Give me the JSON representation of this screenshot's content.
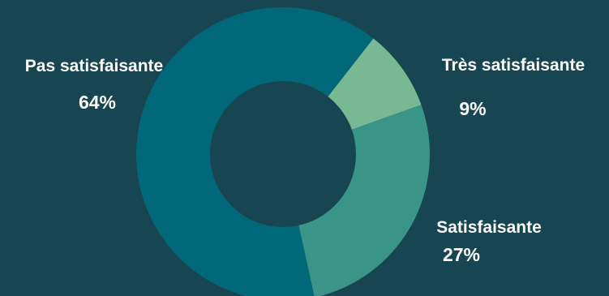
{
  "chart_data": {
    "type": "pie",
    "style": "donut",
    "slices": [
      {
        "label": "Très satisfaisante",
        "value": 9,
        "display": "9%",
        "color": "#78b993"
      },
      {
        "label": "Satisfaisante",
        "value": 27,
        "display": "27%",
        "color": "#3b9488"
      },
      {
        "label": "Pas satisfaisante",
        "value": 64,
        "display": "64%",
        "color": "#006878"
      }
    ],
    "background": "#174552",
    "hole_color": "#174552"
  }
}
